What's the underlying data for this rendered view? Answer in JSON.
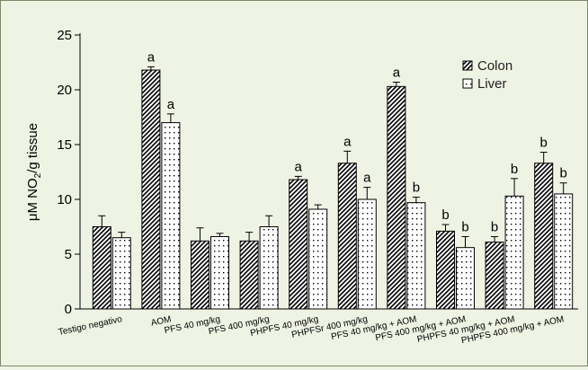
{
  "chart_data": {
    "type": "bar",
    "categories": [
      "Testigo negativo",
      "AOM",
      "PFS 40 mg/kg",
      "PFS 400 mg/kg",
      "PHPFS 40 mg/kg",
      "PHPFSr 400 mg/kg",
      "PFS 40 mg/kg + AOM",
      "PFS 400 mg/kg + AOM",
      "PHPFS 40 mg/kg + AOM",
      "PHPFS 400 mg/kg + AOM"
    ],
    "series": [
      {
        "name": "Colon",
        "pattern": "diagonal-hatch",
        "values": [
          7.5,
          21.8,
          6.2,
          6.2,
          11.8,
          13.3,
          20.3,
          7.1,
          6.1,
          13.3
        ],
        "errors": [
          1.0,
          0.3,
          1.2,
          0.8,
          0.3,
          1.1,
          0.4,
          0.6,
          0.5,
          1.0
        ],
        "labels": [
          "",
          "a",
          "",
          "",
          "a",
          "a",
          "a",
          "b",
          "b",
          "b"
        ]
      },
      {
        "name": "Liver",
        "pattern": "dotted",
        "values": [
          6.5,
          17.0,
          6.6,
          7.5,
          9.1,
          10.0,
          9.7,
          5.6,
          10.3,
          10.5
        ],
        "errors": [
          0.5,
          0.8,
          0.3,
          1.0,
          0.4,
          1.1,
          0.5,
          1.0,
          1.6,
          1.0
        ],
        "labels": [
          "",
          "a",
          "",
          "",
          "",
          "a",
          "b",
          "b",
          "b",
          "b"
        ]
      }
    ],
    "ylabel_main": "μM NO",
    "ylabel_sub": "2",
    "ylabel_rest": "/g tissue",
    "xlabel": "",
    "ylim": [
      0,
      25
    ],
    "yticks": [
      0,
      5,
      10,
      15,
      20,
      25
    ],
    "legend_position": "top-right",
    "grid": false,
    "colors": {
      "background": "#eef3e3",
      "bar_fill": "#ffffff",
      "ink": "#000000",
      "frame": "#7a8a6a"
    }
  }
}
